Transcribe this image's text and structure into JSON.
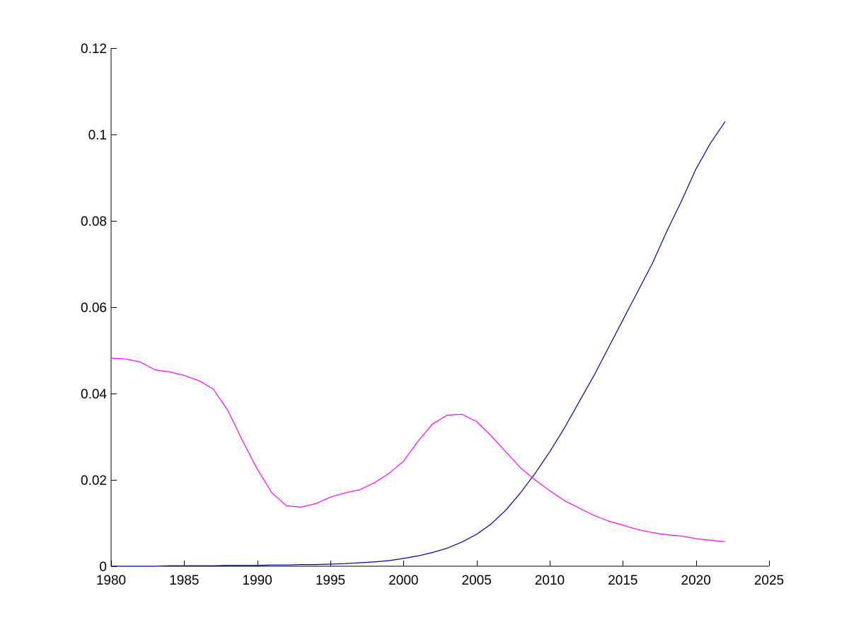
{
  "chart_data": {
    "type": "line",
    "title": "",
    "xlabel": "",
    "ylabel": "",
    "xlim": [
      1980,
      2025
    ],
    "ylim": [
      0,
      0.12
    ],
    "xticks": [
      1980,
      1985,
      1990,
      1995,
      2000,
      2005,
      2010,
      2015,
      2020,
      2025
    ],
    "xtick_labels": [
      "1980",
      "1985",
      "1990",
      "1995",
      "2000",
      "2005",
      "2010",
      "2015",
      "2020",
      "2025"
    ],
    "yticks": [
      0,
      0.02,
      0.04,
      0.06,
      0.08,
      0.1,
      0.12
    ],
    "ytick_labels": [
      "0",
      "0.02",
      "0.04",
      "0.06",
      "0.08",
      "0.1",
      "0.12"
    ],
    "grid": false,
    "legend": "none",
    "series": [
      {
        "color": "#0000aa",
        "x": [
          1980,
          1981,
          1982,
          1983,
          1984,
          1985,
          1986,
          1987,
          1988,
          1989,
          1990,
          1991,
          1992,
          1993,
          1994,
          1995,
          1996,
          1997,
          1998,
          1999,
          2000,
          2001,
          2002,
          2003,
          2004,
          2005,
          2006,
          2007,
          2008,
          2009,
          2010,
          2011,
          2012,
          2013,
          2014,
          2015,
          2016,
          2017,
          2018,
          2019,
          2020,
          2021,
          2022
        ],
        "y": [
          0.0,
          0.0,
          0.0,
          0.0,
          0.0001,
          0.0001,
          0.0001,
          0.0001,
          0.0002,
          0.0002,
          0.0002,
          0.0003,
          0.0003,
          0.0004,
          0.0004,
          0.0005,
          0.0006,
          0.0008,
          0.001,
          0.0013,
          0.0018,
          0.0024,
          0.0032,
          0.0042,
          0.0056,
          0.0074,
          0.0098,
          0.013,
          0.017,
          0.0215,
          0.0265,
          0.032,
          0.038,
          0.044,
          0.0505,
          0.057,
          0.0635,
          0.07,
          0.0775,
          0.0845,
          0.092,
          0.098,
          0.103
        ]
      },
      {
        "color": "#ff00ff",
        "x": [
          1980,
          1981,
          1982,
          1983,
          1984,
          1985,
          1986,
          1987,
          1988,
          1989,
          1990,
          1991,
          1992,
          1993,
          1994,
          1995,
          1996,
          1997,
          1998,
          1999,
          2000,
          2001,
          2002,
          2003,
          2004,
          2005,
          2006,
          2007,
          2008,
          2009,
          2010,
          2011,
          2012,
          2013,
          2014,
          2015,
          2016,
          2017,
          2018,
          2019,
          2020,
          2021,
          2022
        ],
        "y": [
          0.0482,
          0.048,
          0.0473,
          0.0455,
          0.045,
          0.0442,
          0.043,
          0.041,
          0.036,
          0.029,
          0.0225,
          0.017,
          0.014,
          0.0137,
          0.0145,
          0.016,
          0.017,
          0.0177,
          0.0193,
          0.0215,
          0.0243,
          0.029,
          0.033,
          0.035,
          0.0352,
          0.0335,
          0.0302,
          0.0265,
          0.0228,
          0.02,
          0.0175,
          0.0152,
          0.0135,
          0.0118,
          0.0105,
          0.0095,
          0.0085,
          0.0078,
          0.0073,
          0.007,
          0.0064,
          0.006,
          0.0057
        ]
      }
    ]
  }
}
